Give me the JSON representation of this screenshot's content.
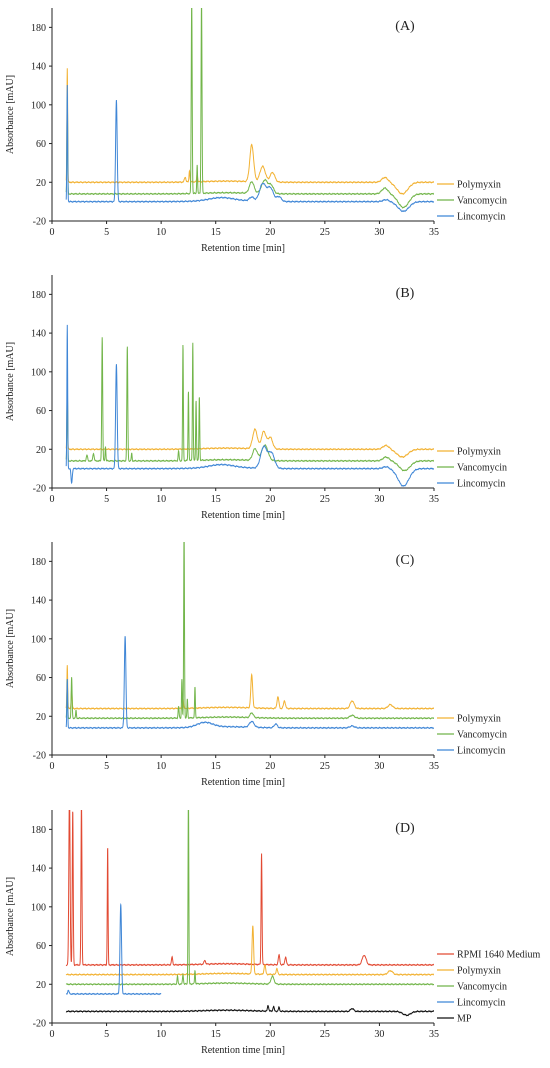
{
  "chart_data": [
    {
      "type": "line",
      "letter": "(A)",
      "xlabel": "Retention time [min]",
      "ylabel": "Absorbance [mAU]",
      "xlim": [
        0,
        35
      ],
      "ylim": [
        -20,
        200
      ],
      "xticks": [
        0,
        5,
        10,
        15,
        20,
        25,
        30,
        35
      ],
      "yticks": [
        -20,
        20,
        60,
        100,
        140,
        180
      ],
      "legend_position": "right",
      "series": [
        {
          "name": "Polymyxin",
          "color": "#f2b233",
          "baseline": 20,
          "peaks": [
            [
              1.4,
              118,
              0.05
            ],
            [
              12.2,
              5,
              0.1
            ],
            [
              12.6,
              12,
              0.06
            ],
            [
              13.3,
              8,
              0.06
            ],
            [
              18.3,
              38,
              0.25
            ],
            [
              19.3,
              16,
              0.35
            ],
            [
              20.2,
              10,
              0.3
            ],
            [
              30.5,
              5,
              0.4
            ]
          ],
          "dips": [
            [
              32.1,
              -12,
              0.7
            ]
          ]
        },
        {
          "name": "Vancomycin",
          "color": "#72b54a",
          "baseline": 8,
          "peaks": [
            [
              1.4,
              100,
              0.05
            ],
            [
              12.8,
              200,
              0.06
            ],
            [
              13.3,
              30,
              0.05
            ],
            [
              13.7,
              200,
              0.06
            ],
            [
              18.3,
              12,
              0.3
            ],
            [
              19.5,
              14,
              0.4
            ],
            [
              20.1,
              8,
              0.3
            ],
            [
              30.5,
              6,
              0.4
            ]
          ],
          "dips": [
            [
              32.2,
              -14,
              0.7
            ]
          ]
        },
        {
          "name": "Lincomycin",
          "color": "#3f86d6",
          "baseline": 0,
          "peaks": [
            [
              1.4,
              120,
              0.05
            ],
            [
              5.9,
              105,
              0.1
            ],
            [
              15.5,
              3,
              1.5
            ],
            [
              18.3,
              4,
              0.3
            ],
            [
              19.3,
              18,
              0.4
            ],
            [
              20.0,
              14,
              0.4
            ],
            [
              20.8,
              5,
              0.3
            ],
            [
              30.6,
              2,
              0.4
            ]
          ],
          "dips": [
            [
              32.2,
              -10,
              0.7
            ]
          ]
        }
      ]
    },
    {
      "type": "line",
      "letter": "(B)",
      "xlabel": "Retention time [min]",
      "ylabel": "Absorbance [mAU]",
      "xlim": [
        0,
        35
      ],
      "ylim": [
        -20,
        200
      ],
      "xticks": [
        0,
        5,
        10,
        15,
        20,
        25,
        30,
        35
      ],
      "yticks": [
        -20,
        20,
        60,
        100,
        140,
        180
      ],
      "legend_position": "right",
      "series": [
        {
          "name": "Polymyxin",
          "color": "#f2b233",
          "baseline": 20,
          "peaks": [
            [
              1.4,
              60,
              0.05
            ],
            [
              18.6,
              20,
              0.3
            ],
            [
              19.4,
              18,
              0.3
            ],
            [
              20.0,
              12,
              0.3
            ],
            [
              30.6,
              4,
              0.4
            ]
          ],
          "dips": [
            [
              32.1,
              -8,
              0.7
            ]
          ]
        },
        {
          "name": "Vancomycin",
          "color": "#72b54a",
          "baseline": 8,
          "peaks": [
            [
              1.4,
              80,
              0.05
            ],
            [
              3.2,
              6,
              0.08
            ],
            [
              3.8,
              8,
              0.08
            ],
            [
              4.6,
              128,
              0.06
            ],
            [
              4.9,
              15,
              0.05
            ],
            [
              6.9,
              118,
              0.06
            ],
            [
              7.3,
              8,
              0.05
            ],
            [
              11.6,
              10,
              0.06
            ],
            [
              12.0,
              120,
              0.05
            ],
            [
              12.5,
              72,
              0.05
            ],
            [
              12.9,
              122,
              0.05
            ],
            [
              13.2,
              62,
              0.05
            ],
            [
              13.5,
              66,
              0.05
            ],
            [
              18.6,
              12,
              0.3
            ],
            [
              19.5,
              16,
              0.4
            ],
            [
              30.6,
              4,
              0.4
            ]
          ],
          "dips": [
            [
              32.3,
              -10,
              0.7
            ]
          ]
        },
        {
          "name": "Lincomycin",
          "color": "#3f86d6",
          "baseline": 0,
          "peaks": [
            [
              1.4,
              148,
              0.05
            ],
            [
              5.9,
              108,
              0.1
            ],
            [
              15.5,
              3,
              1.5
            ],
            [
              19.4,
              22,
              0.4
            ],
            [
              20.1,
              16,
              0.4
            ],
            [
              30.6,
              2,
              0.4
            ]
          ],
          "dips": [
            [
              1.8,
              -15,
              0.08
            ],
            [
              32.2,
              -18,
              0.7
            ]
          ]
        }
      ]
    },
    {
      "type": "line",
      "letter": "(C)",
      "xlabel": "Retention time [min]",
      "ylabel": "Absorbance [mAU]",
      "xlim": [
        0,
        35
      ],
      "ylim": [
        -20,
        200
      ],
      "xticks": [
        0,
        5,
        10,
        15,
        20,
        25,
        30,
        35
      ],
      "yticks": [
        -20,
        20,
        60,
        100,
        140,
        180
      ],
      "legend_position": "right",
      "series": [
        {
          "name": "Polymyxin",
          "color": "#f2b233",
          "baseline": 28,
          "peaks": [
            [
              1.4,
              45,
              0.05
            ],
            [
              1.8,
              20,
              0.06
            ],
            [
              12.0,
              10,
              0.06
            ],
            [
              18.3,
              34,
              0.12
            ],
            [
              20.7,
              12,
              0.12
            ],
            [
              21.3,
              8,
              0.12
            ],
            [
              27.5,
              8,
              0.25
            ],
            [
              31.0,
              4,
              0.3
            ]
          ],
          "dips": []
        },
        {
          "name": "Vancomycin",
          "color": "#72b54a",
          "baseline": 18,
          "peaks": [
            [
              1.4,
              40,
              0.05
            ],
            [
              1.8,
              42,
              0.06
            ],
            [
              2.2,
              8,
              0.05
            ],
            [
              11.6,
              12,
              0.06
            ],
            [
              11.9,
              40,
              0.05
            ],
            [
              12.1,
              200,
              0.05
            ],
            [
              12.4,
              20,
              0.05
            ],
            [
              13.1,
              32,
              0.05
            ],
            [
              18.3,
              5,
              0.2
            ],
            [
              27.5,
              3,
              0.3
            ]
          ],
          "dips": []
        },
        {
          "name": "Lincomycin",
          "color": "#3f86d6",
          "baseline": 8,
          "peaks": [
            [
              1.4,
              50,
              0.05
            ],
            [
              6.7,
              95,
              0.1
            ],
            [
              14.0,
              5,
              1.0
            ],
            [
              18.3,
              6,
              0.3
            ],
            [
              20.5,
              4,
              0.2
            ],
            [
              27.5,
              2,
              0.3
            ]
          ],
          "dips": []
        }
      ]
    },
    {
      "type": "line",
      "letter": "(D)",
      "xlabel": "Retention time [min]",
      "ylabel": "Absorbance [mAU]",
      "xlim": [
        0,
        35
      ],
      "ylim": [
        -20,
        200
      ],
      "xticks": [
        0,
        5,
        10,
        15,
        20,
        25,
        30,
        35
      ],
      "yticks": [
        -20,
        20,
        60,
        100,
        140,
        180
      ],
      "legend_position": "right",
      "series": [
        {
          "name": "RPMI 1640 Medium",
          "color": "#e24a33",
          "baseline": 40,
          "peaks": [
            [
              1.6,
              180,
              0.08
            ],
            [
              1.9,
              160,
              0.06
            ],
            [
              2.7,
              170,
              0.06
            ],
            [
              5.1,
              123,
              0.05
            ],
            [
              11.0,
              8,
              0.08
            ],
            [
              14.0,
              4,
              0.1
            ],
            [
              19.2,
              115,
              0.06
            ],
            [
              20.8,
              10,
              0.1
            ],
            [
              21.4,
              8,
              0.1
            ],
            [
              28.6,
              10,
              0.25
            ]
          ],
          "dips": []
        },
        {
          "name": "Polymyxin",
          "color": "#f2b233",
          "baseline": 30,
          "peaks": [
            [
              18.4,
              50,
              0.1
            ],
            [
              19.5,
              10,
              0.1
            ],
            [
              20.6,
              6,
              0.1
            ],
            [
              31.0,
              4,
              0.3
            ]
          ],
          "dips": []
        },
        {
          "name": "Vancomycin",
          "color": "#72b54a",
          "baseline": 20,
          "peaks": [
            [
              11.5,
              8,
              0.06
            ],
            [
              12.0,
              10,
              0.06
            ],
            [
              12.5,
              200,
              0.05
            ],
            [
              13.1,
              14,
              0.05
            ],
            [
              20.2,
              8,
              0.2
            ]
          ],
          "dips": []
        },
        {
          "name": "Lincomycin",
          "color": "#3f86d6",
          "baseline": 10,
          "xmax": 10,
          "peaks": [
            [
              1.5,
              4,
              0.08
            ],
            [
              6.3,
              92,
              0.1
            ]
          ],
          "dips": []
        },
        {
          "name": "MP",
          "color": "#111111",
          "baseline": -8,
          "peaks": [
            [
              19.8,
              6,
              0.08
            ],
            [
              20.3,
              5,
              0.08
            ],
            [
              20.8,
              4,
              0.08
            ],
            [
              27.5,
              3,
              0.2
            ]
          ],
          "dips": [
            [
              32.5,
              -4,
              0.5
            ]
          ]
        }
      ]
    }
  ]
}
